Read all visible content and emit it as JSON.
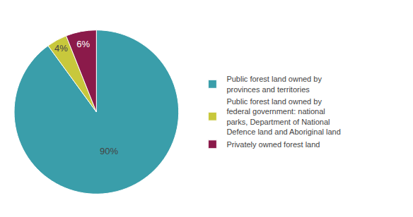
{
  "chart_data": {
    "type": "pie",
    "categories": [
      "Public forest land owned by\nprovinces and territories",
      "Public forest land owned by\nfederal government: national\nparks, Department of National\nDefence land and Aboriginal land",
      "Privately owned forest land"
    ],
    "values": [
      90,
      4,
      6
    ],
    "value_labels": [
      "90%",
      "4%",
      "6%"
    ],
    "colors": [
      "#3a9eaa",
      "#c8c83c",
      "#8b1a4a"
    ],
    "data_labels": true,
    "legend": "right"
  }
}
